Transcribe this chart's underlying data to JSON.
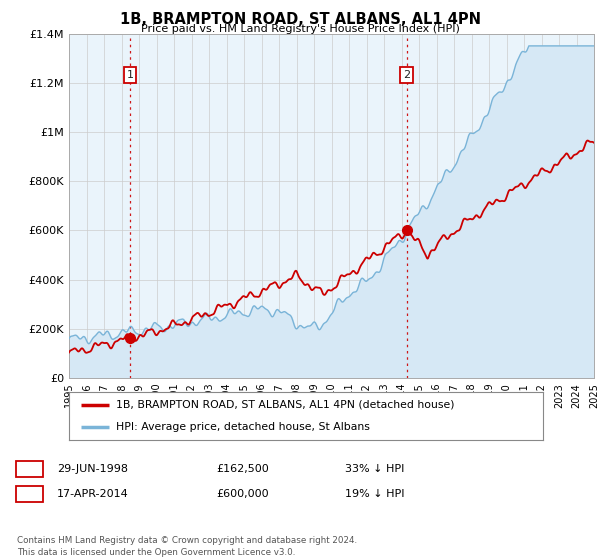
{
  "title": "1B, BRAMPTON ROAD, ST ALBANS, AL1 4PN",
  "subtitle": "Price paid vs. HM Land Registry's House Price Index (HPI)",
  "legend_line1": "1B, BRAMPTON ROAD, ST ALBANS, AL1 4PN (detached house)",
  "legend_line2": "HPI: Average price, detached house, St Albans",
  "annotation1_date": "29-JUN-1998",
  "annotation1_price": "£162,500",
  "annotation1_hpi": "33% ↓ HPI",
  "annotation2_date": "17-APR-2014",
  "annotation2_price": "£600,000",
  "annotation2_hpi": "19% ↓ HPI",
  "footer": "Contains HM Land Registry data © Crown copyright and database right 2024.\nThis data is licensed under the Open Government Licence v3.0.",
  "hpi_color": "#7ab4d8",
  "hpi_fill_color": "#d6e8f5",
  "price_color": "#cc0000",
  "ann_box_color": "#cc0000",
  "grid_color": "#cccccc",
  "chart_bg": "#eaf4fb",
  "fig_bg": "#ffffff",
  "ylim": [
    0,
    1400000
  ],
  "yticks": [
    0,
    200000,
    400000,
    600000,
    800000,
    1000000,
    1200000,
    1400000
  ],
  "ytick_labels": [
    "£0",
    "£200K",
    "£400K",
    "£600K",
    "£800K",
    "£1M",
    "£1.2M",
    "£1.4M"
  ],
  "sale1_x": 1998.49,
  "sale1_y": 162500,
  "sale2_x": 2014.29,
  "sale2_y": 600000,
  "xlim_left": 1995,
  "xlim_right": 2025
}
